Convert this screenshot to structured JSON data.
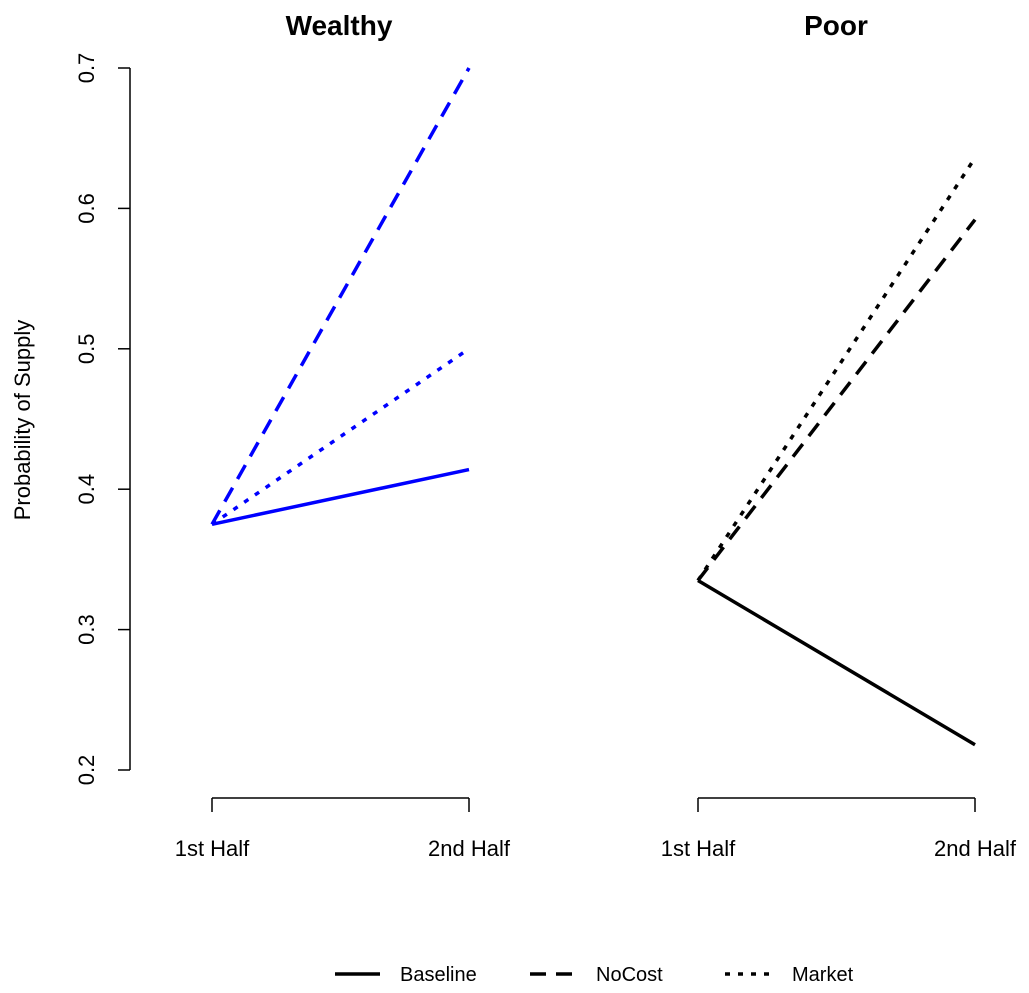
{
  "chart_data": [
    {
      "type": "line",
      "title": "Wealthy",
      "xlabel": "",
      "ylabel": "Probability of Supply",
      "categories": [
        "1st Half",
        "2nd Half"
      ],
      "ylim": [
        0.2,
        0.7
      ],
      "yticks": [
        "0.2",
        "0.3",
        "0.4",
        "0.5",
        "0.6",
        "0.7"
      ],
      "grid": false,
      "line_color": "#0000ff",
      "series": [
        {
          "name": "Baseline",
          "values": [
            0.375,
            0.414
          ]
        },
        {
          "name": "NoCost",
          "values": [
            0.375,
            0.7
          ]
        },
        {
          "name": "Market",
          "values": [
            0.375,
            0.5
          ]
        }
      ]
    },
    {
      "type": "line",
      "title": "Poor",
      "xlabel": "",
      "ylabel": "",
      "categories": [
        "1st Half",
        "2nd Half"
      ],
      "ylim": [
        0.2,
        0.7
      ],
      "grid": false,
      "line_color": "#000000",
      "series": [
        {
          "name": "Baseline",
          "values": [
            0.335,
            0.218
          ]
        },
        {
          "name": "NoCost",
          "values": [
            0.335,
            0.592
          ]
        },
        {
          "name": "Market",
          "values": [
            0.335,
            0.636
          ]
        }
      ]
    }
  ],
  "legend": {
    "placement": "bottom",
    "entries": [
      {
        "label": "Baseline",
        "style": "solid"
      },
      {
        "label": "NoCost",
        "style": "dashed"
      },
      {
        "label": "Market",
        "style": "dotted"
      }
    ]
  }
}
